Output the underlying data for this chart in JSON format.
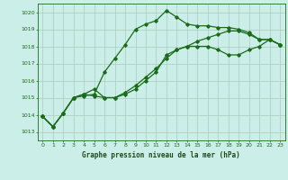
{
  "bg_color": "#cceee8",
  "grid_color": "#aaccbb",
  "line_color": "#1a6b1a",
  "title": "Graphe pression niveau de la mer (hPa)",
  "ylim": [
    1012.5,
    1020.5
  ],
  "xlim": [
    -0.5,
    23.5
  ],
  "yticks": [
    1013,
    1014,
    1015,
    1016,
    1017,
    1018,
    1019,
    1020
  ],
  "xticks": [
    0,
    1,
    2,
    3,
    4,
    5,
    6,
    7,
    8,
    9,
    10,
    11,
    12,
    13,
    14,
    15,
    16,
    17,
    18,
    19,
    20,
    21,
    22,
    23
  ],
  "series1": {
    "x": [
      0,
      1,
      2,
      3,
      4,
      5,
      6,
      7,
      8,
      9,
      10,
      11,
      12,
      13,
      14,
      15,
      16,
      17,
      18,
      19,
      20,
      21,
      22,
      23
    ],
    "y": [
      1013.9,
      1013.3,
      1014.1,
      1015.0,
      1015.1,
      1015.2,
      1016.5,
      1017.3,
      1018.1,
      1019.0,
      1019.3,
      1019.5,
      1020.1,
      1019.7,
      1019.3,
      1019.2,
      1019.2,
      1019.1,
      1019.1,
      1019.0,
      1018.8,
      1018.4,
      1018.4,
      1018.1
    ]
  },
  "series2": {
    "x": [
      0,
      1,
      2,
      3,
      4,
      5,
      6,
      7,
      8,
      9,
      10,
      11,
      12,
      13,
      14,
      15,
      16,
      17,
      18,
      19,
      20,
      21,
      22,
      23
    ],
    "y": [
      1013.9,
      1013.3,
      1014.1,
      1015.0,
      1015.2,
      1015.5,
      1015.0,
      1015.0,
      1015.2,
      1015.5,
      1016.0,
      1016.5,
      1017.5,
      1017.8,
      1018.0,
      1018.3,
      1018.5,
      1018.7,
      1018.9,
      1018.9,
      1018.7,
      1018.4,
      1018.4,
      1018.1
    ]
  },
  "series3": {
    "x": [
      0,
      1,
      2,
      3,
      4,
      5,
      6,
      7,
      8,
      9,
      10,
      11,
      12,
      13,
      14,
      15,
      16,
      17,
      18,
      19,
      20,
      21,
      22,
      23
    ],
    "y": [
      1013.9,
      1013.3,
      1014.1,
      1015.0,
      1015.2,
      1015.1,
      1015.0,
      1015.0,
      1015.3,
      1015.7,
      1016.2,
      1016.7,
      1017.3,
      1017.8,
      1018.0,
      1018.0,
      1018.0,
      1017.8,
      1017.5,
      1017.5,
      1017.8,
      1018.0,
      1018.4,
      1018.1
    ]
  }
}
